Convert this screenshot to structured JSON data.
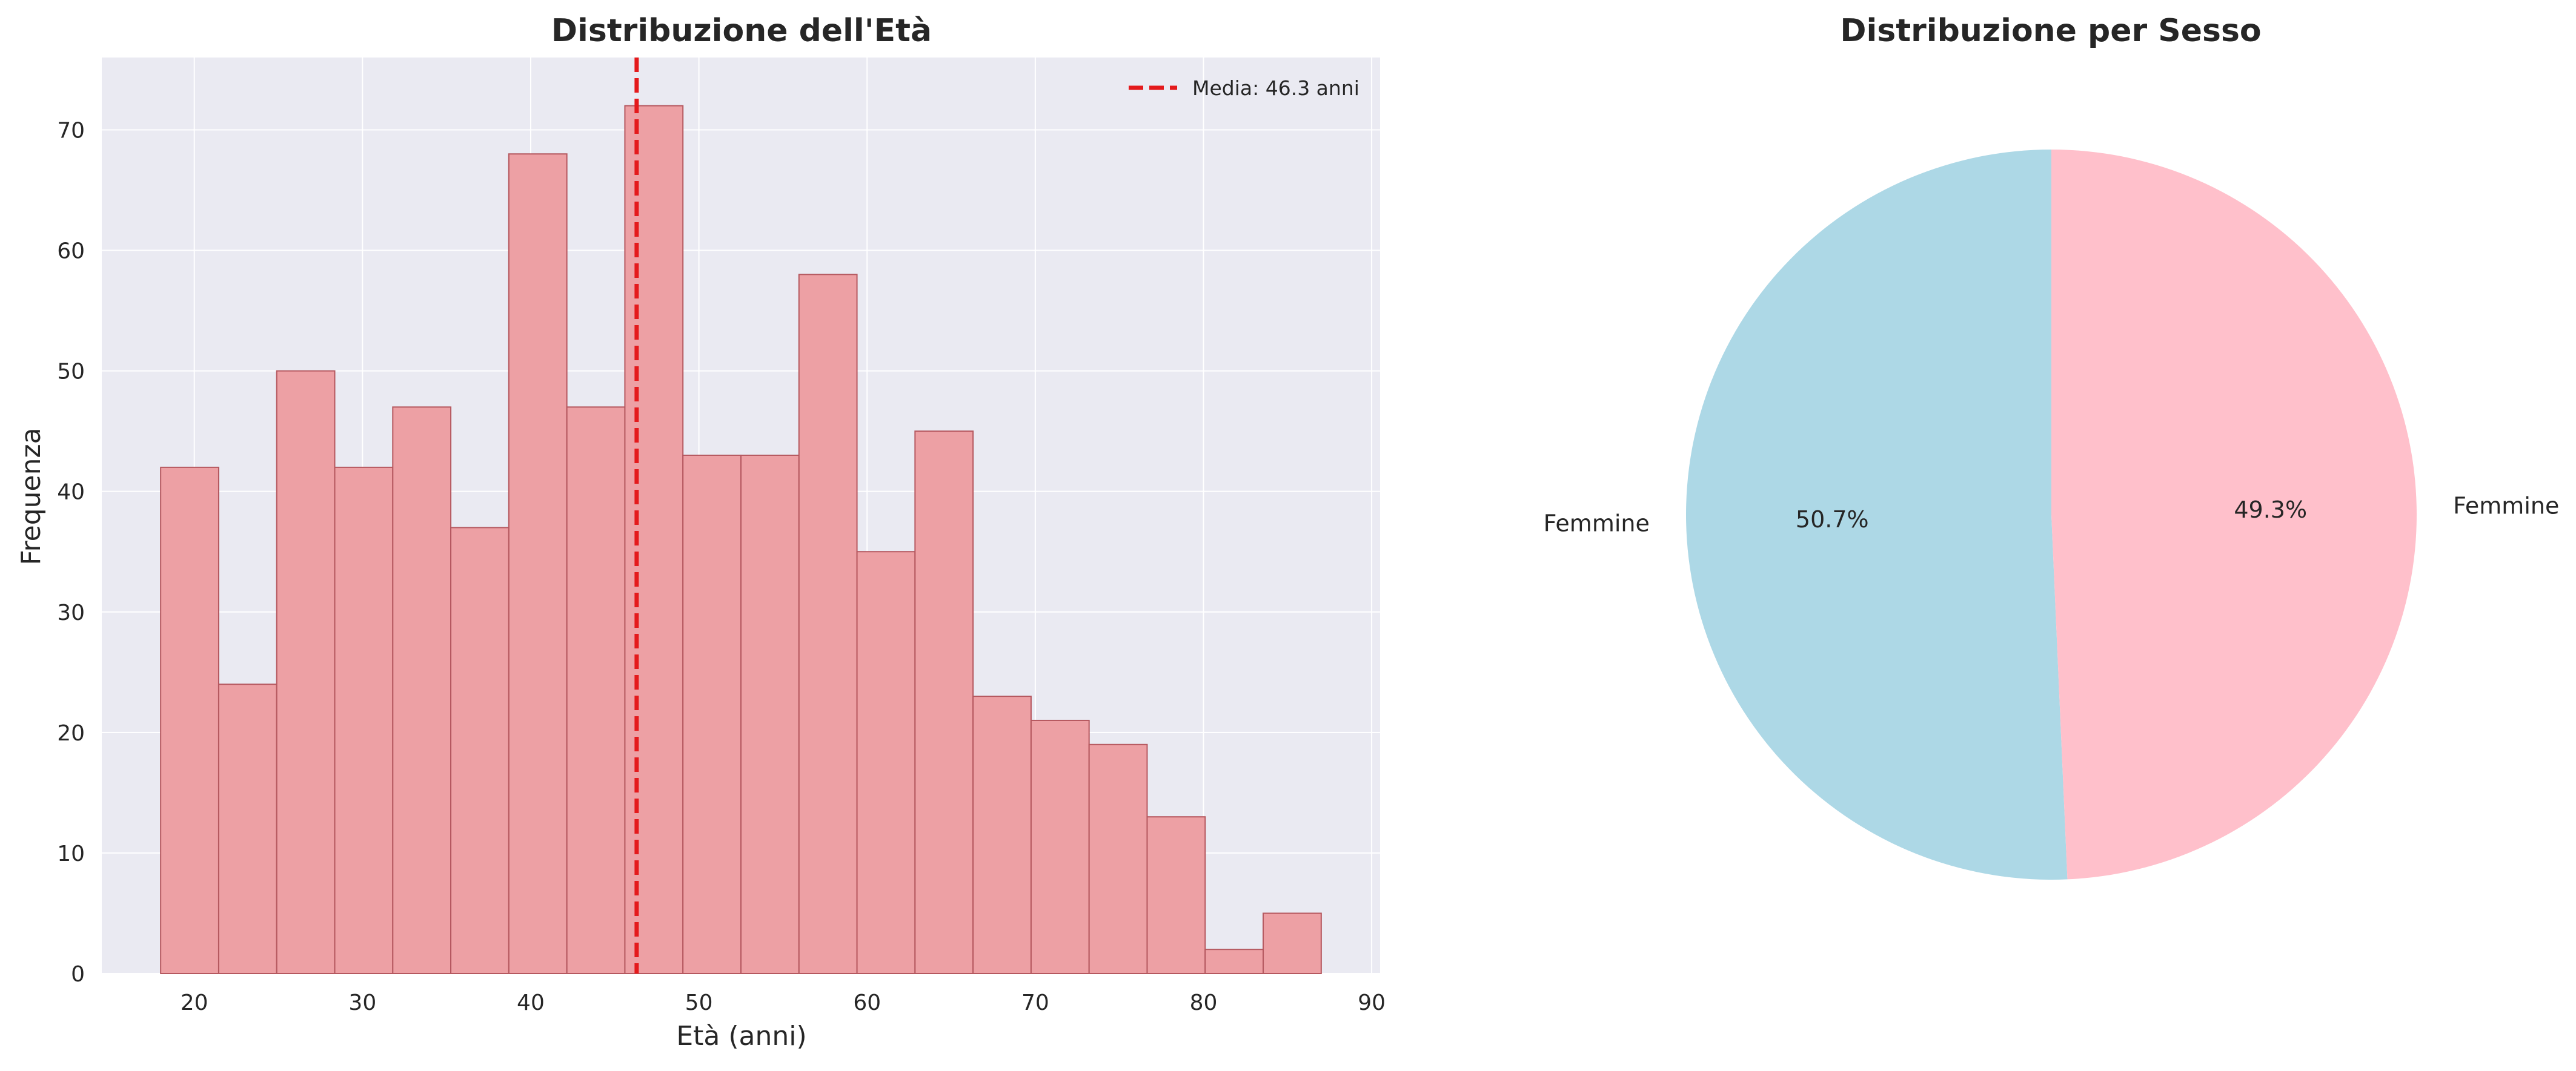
{
  "chart_data": [
    {
      "type": "bar",
      "subtype": "histogram",
      "title": "Distribuzione dell'Età",
      "xlabel": "Età (anni)",
      "ylabel": "Frequenza",
      "bin_start": 18,
      "bin_width": 3.45,
      "values": [
        42,
        24,
        50,
        42,
        47,
        37,
        68,
        47,
        72,
        43,
        43,
        58,
        35,
        45,
        23,
        21,
        19,
        13,
        2,
        5
      ],
      "xlim": [
        14.5,
        90.5
      ],
      "ylim": [
        0,
        76
      ],
      "xticks": [
        20,
        30,
        40,
        50,
        60,
        70,
        80,
        90
      ],
      "yticks": [
        0,
        10,
        20,
        30,
        40,
        50,
        60,
        70
      ],
      "xtick_labels": [
        "20",
        "30",
        "40",
        "50",
        "60",
        "70",
        "80",
        "90"
      ],
      "ytick_labels": [
        "0",
        "10",
        "20",
        "30",
        "40",
        "50",
        "60",
        "70"
      ],
      "mean_line": {
        "x": 46.3,
        "label": "Media: 46.3 anni",
        "color": "#e41a1c",
        "style": "dashed"
      },
      "legend_position": "top-right",
      "grid": true,
      "colors": {
        "bar_fill": "#eda0a4",
        "bar_edge": "#b5585f",
        "axes_bg": "#eaeaf2",
        "grid": "#ffffff"
      }
    },
    {
      "type": "pie",
      "title": "Distribuzione per Sesso",
      "slices": [
        {
          "label": "Femmine",
          "percent_label": "50.7%",
          "value": 50.7,
          "color": "#add8e6"
        },
        {
          "label": "Femmine",
          "percent_label": "49.3%",
          "value": 49.3,
          "color": "#ffc0cb"
        }
      ],
      "start_angle": 90
    }
  ]
}
